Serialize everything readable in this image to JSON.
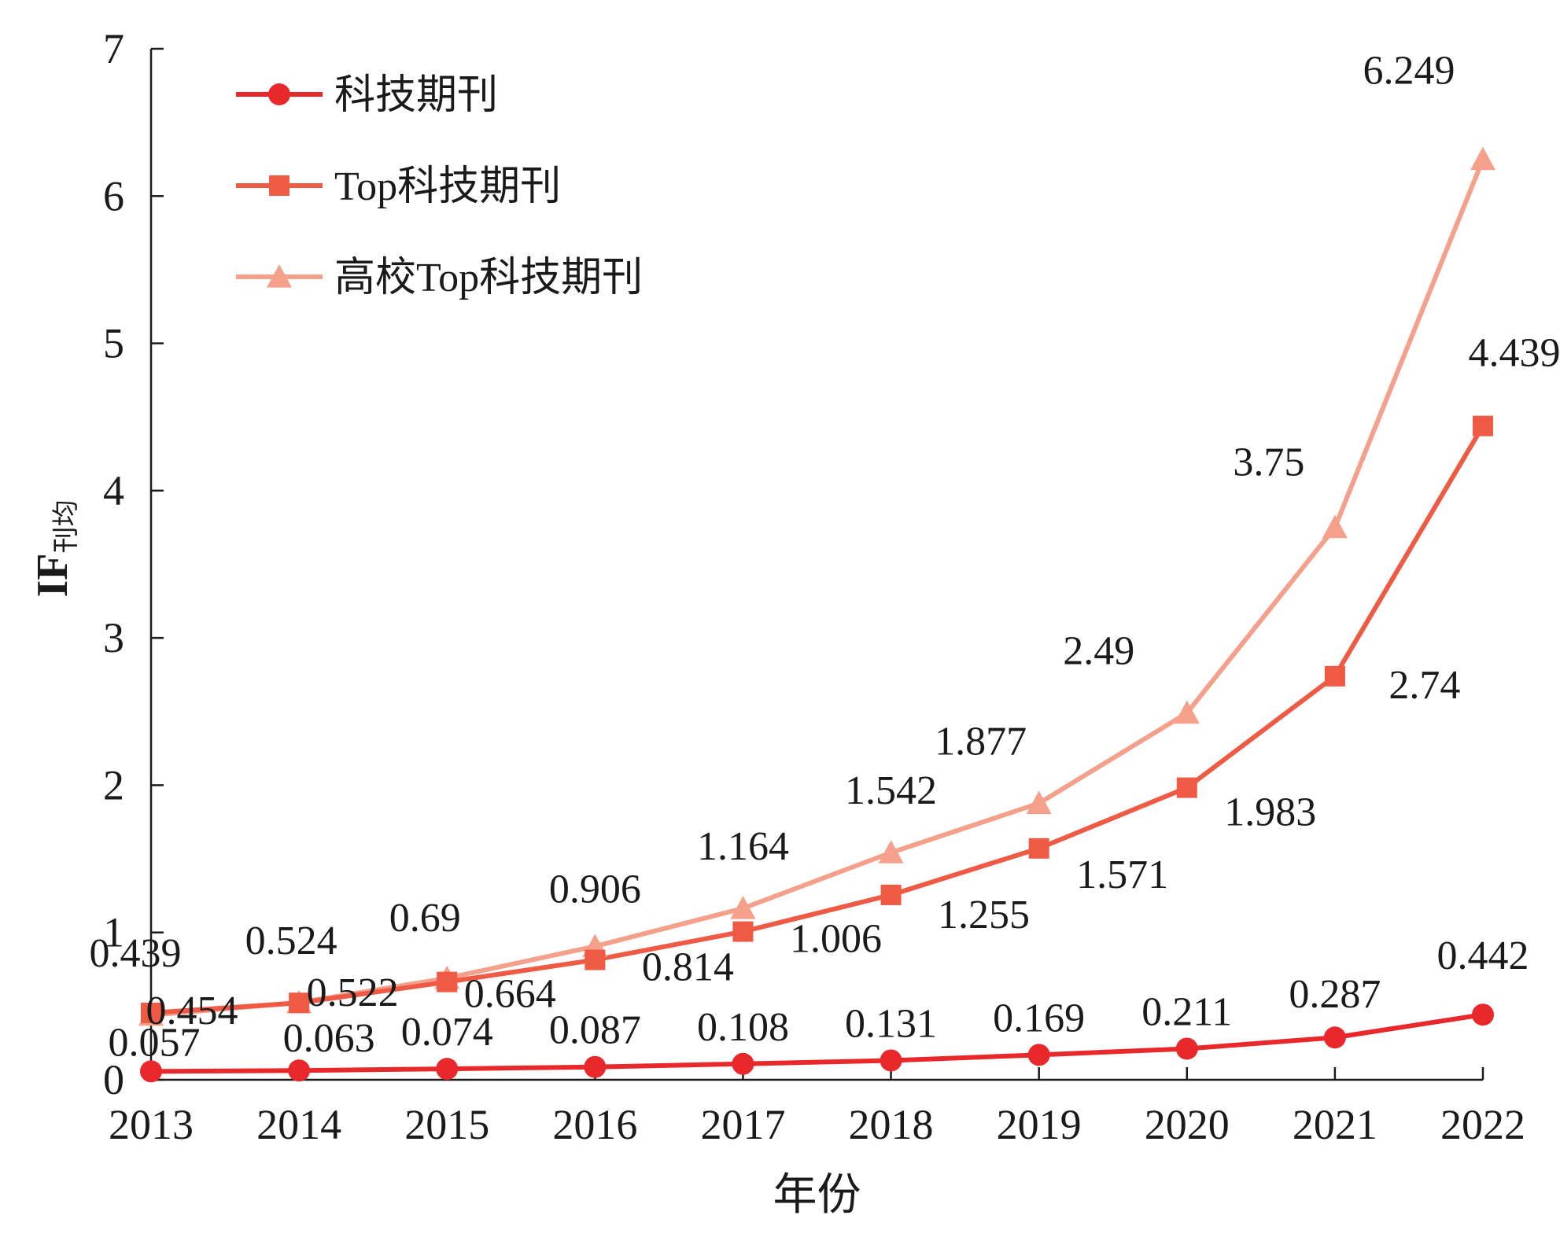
{
  "chart_data": {
    "type": "line",
    "title": "",
    "xlabel": "年份",
    "ylabel": "IF",
    "ylabel_sub": "刊均",
    "x": [
      "2013",
      "2014",
      "2015",
      "2016",
      "2017",
      "2018",
      "2019",
      "2020",
      "2021",
      "2022"
    ],
    "yticks": [
      "0",
      "1",
      "2",
      "3",
      "4",
      "5",
      "6",
      "7"
    ],
    "ylim": [
      0,
      7
    ],
    "grid": false,
    "legend_position": "top-left",
    "series": [
      {
        "name": "科技期刊",
        "marker": "circle",
        "color": "#e8282b",
        "values": [
          0.057,
          0.063,
          0.074,
          0.087,
          0.108,
          0.131,
          0.169,
          0.211,
          0.287,
          0.442
        ],
        "labels": [
          "0.057",
          "0.063",
          "0.074",
          "0.087",
          "0.108",
          "0.131",
          "0.169",
          "0.211",
          "0.287",
          "0.442"
        ]
      },
      {
        "name": "Top科技期刊",
        "marker": "square",
        "color": "#ef5a45",
        "values": [
          0.454,
          0.522,
          0.664,
          0.814,
          1.006,
          1.255,
          1.571,
          1.983,
          2.74,
          4.439
        ],
        "labels": [
          "0.454",
          "0.522",
          "0.664",
          "0.814",
          "1.006",
          "1.255",
          "1.571",
          "1.983",
          "2.74",
          "4.439"
        ]
      },
      {
        "name": "高校Top科技期刊",
        "marker": "triangle",
        "color": "#f4a08a",
        "values": [
          0.439,
          0.524,
          0.69,
          0.906,
          1.164,
          1.542,
          1.877,
          2.49,
          3.75,
          6.249
        ],
        "labels": [
          "0.439",
          "0.524",
          "0.69",
          "0.906",
          "1.164",
          "1.542",
          "1.877",
          "2.49",
          "3.75",
          "6.249"
        ]
      }
    ]
  }
}
